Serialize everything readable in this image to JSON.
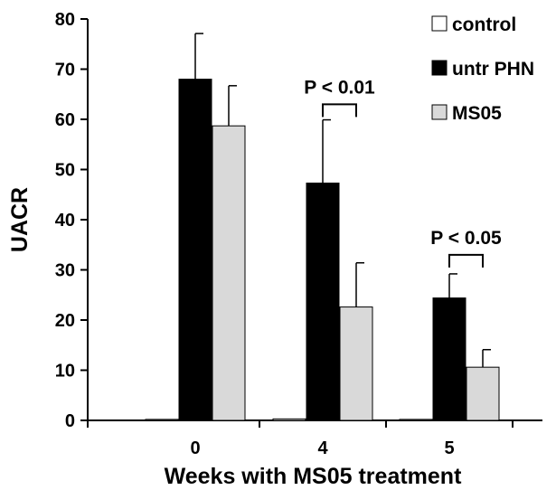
{
  "chart_data": {
    "type": "bar",
    "title": "",
    "xlabel": "Weeks with MS05 treatment",
    "ylabel": "UACR",
    "categories": [
      "0",
      "4",
      "5"
    ],
    "ylim": [
      0,
      80
    ],
    "yticks": [
      0,
      10,
      20,
      30,
      40,
      50,
      60,
      70,
      80
    ],
    "grid": false,
    "legend_position": "top-right",
    "series": [
      {
        "name": "control",
        "color": "#ffffff",
        "values": [
          0.2,
          0.3,
          0.2
        ],
        "errors": [
          0,
          0,
          0
        ]
      },
      {
        "name": "untr PHN",
        "color": "#000000",
        "values": [
          68.0,
          47.3,
          24.4
        ],
        "errors": [
          9.1,
          12.6,
          4.8
        ]
      },
      {
        "name": "MS05",
        "color": "#d9d9d9",
        "values": [
          58.7,
          22.6,
          10.6
        ],
        "errors": [
          8.0,
          8.8,
          3.5
        ]
      }
    ],
    "annotations": [
      {
        "text": "P < 0.01",
        "category": "4",
        "between": [
          "untr PHN",
          "MS05"
        ],
        "y": 63
      },
      {
        "text": "P < 0.05",
        "category": "5",
        "between": [
          "untr PHN",
          "MS05"
        ],
        "y": 33
      }
    ]
  }
}
